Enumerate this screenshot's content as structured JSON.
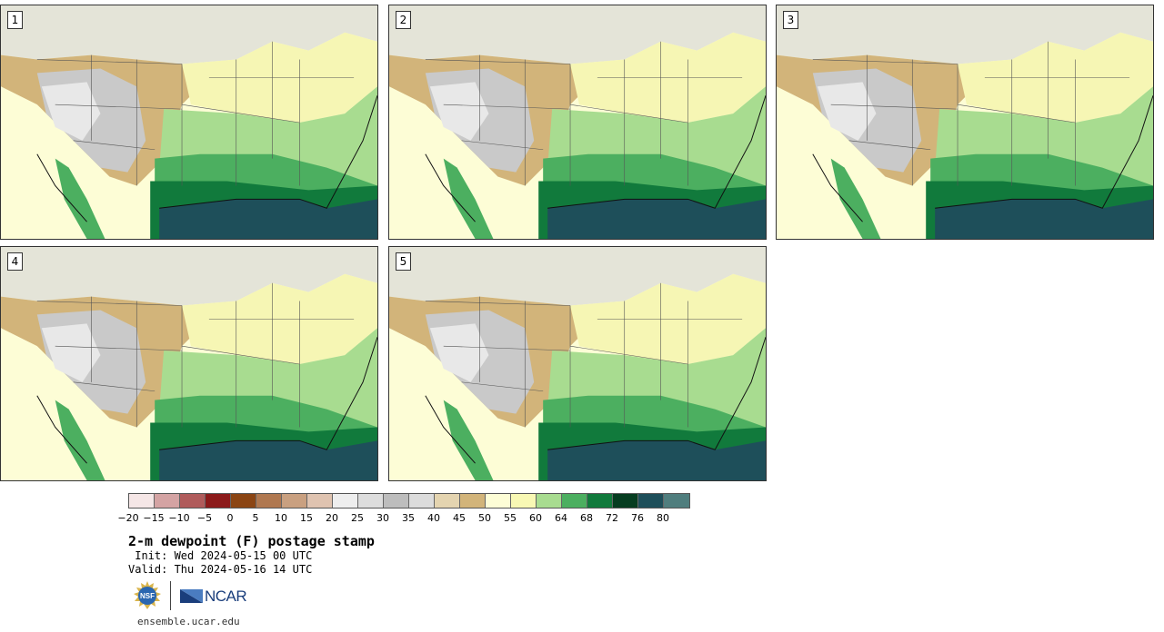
{
  "panels": [
    {
      "label": "1"
    },
    {
      "label": "2"
    },
    {
      "label": "3"
    },
    {
      "label": "4"
    },
    {
      "label": "5"
    }
  ],
  "colorbar": {
    "colors": [
      "#f5e6e6",
      "#d4a3a3",
      "#b05b5b",
      "#8c1a1a",
      "#8b4513",
      "#b07850",
      "#c9a080",
      "#dfc3b0",
      "#eeeeee",
      "#dddddd",
      "#bdbdbd",
      "#dcdcdc",
      "#e4d4b0",
      "#d2b47a",
      "#fdfdd6",
      "#f8f8b4",
      "#a8dc90",
      "#4caf60",
      "#117a3c",
      "#063d20",
      "#1e4f5a",
      "#507e7e"
    ],
    "ticks": [
      "−20",
      "−15",
      "−10",
      "−5",
      "0",
      "5",
      "10",
      "15",
      "20",
      "25",
      "30",
      "35",
      "40",
      "45",
      "50",
      "55",
      "60",
      "64",
      "68",
      "72",
      "76",
      "80"
    ]
  },
  "title": "2-m dewpoint (F) postage stamp",
  "init": " Init: Wed 2024-05-15 00 UTC",
  "valid": "Valid: Thu 2024-05-16 14 UTC",
  "logos": {
    "nsf_text": "NSF",
    "ncar_text": "NCAR"
  },
  "footer_url": "ensemble.ucar.edu"
}
